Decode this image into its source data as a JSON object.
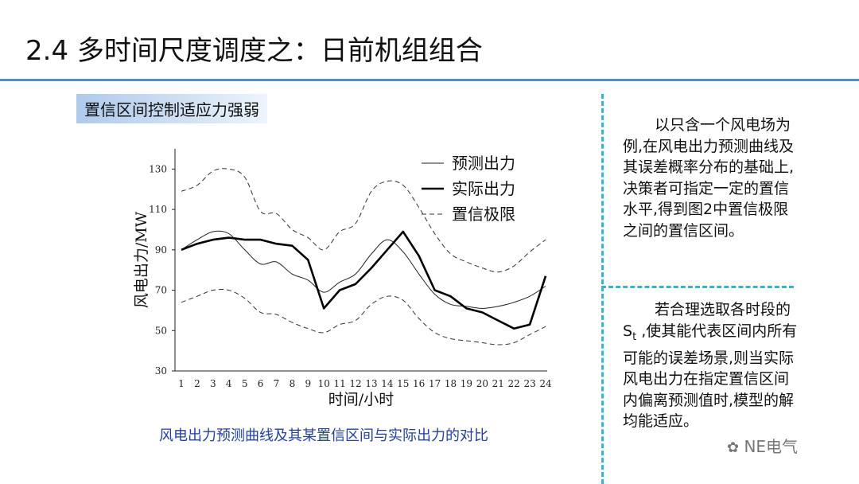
{
  "slide": {
    "title": "2.4 多时间尺度调度之：日前机组组合",
    "subtitle": "置信区间控制适应力强弱",
    "caption": "风电出力预测曲线及其某置信区间与实际出力的对比",
    "paragraph1": "以只含一个风电场为例,在风电出力预测曲线及其误差概率分布的基础上,决策者可指定一定的置信水平,得到图2中置信极限之间的置信区间。",
    "paragraph2_before": "若合理选取各时段的S",
    "paragraph2_sub": "t",
    "paragraph2_after": " ,使其能代表区间内所有可能的误差场景,则当实际风电出力在指定置信区间内偏离预测值时,模型的解均能适应。",
    "brand": "NE电气"
  },
  "chart_data": {
    "type": "line",
    "xlabel": "时间/小时",
    "ylabel": "风电出力/MW",
    "x": [
      1,
      2,
      3,
      4,
      5,
      6,
      7,
      8,
      9,
      10,
      11,
      12,
      13,
      14,
      15,
      16,
      17,
      18,
      19,
      20,
      21,
      22,
      23,
      24
    ],
    "xlim": [
      1,
      24
    ],
    "ylim": [
      30,
      140
    ],
    "yticks": [
      30,
      50,
      70,
      90,
      110,
      130
    ],
    "series": [
      {
        "name": "预测出力",
        "style": "thin",
        "values": [
          90,
          95,
          99,
          98,
          90,
          83,
          84,
          78,
          75,
          69,
          74,
          78,
          88,
          95,
          89,
          78,
          68,
          63,
          62,
          61,
          62,
          64,
          67,
          72
        ]
      },
      {
        "name": "实际出力",
        "style": "bold",
        "values": [
          90,
          93,
          95,
          96,
          95,
          95,
          93,
          92,
          85,
          61,
          70,
          73,
          81,
          90,
          99,
          87,
          70,
          67,
          61,
          59,
          55,
          51,
          53,
          77
        ]
      },
      {
        "name": "置信极限",
        "style": "dashed",
        "values": [
          119,
          122,
          129,
          130,
          126,
          109,
          108,
          100,
          96,
          90,
          99,
          103,
          119,
          124,
          122,
          111,
          98,
          88,
          84,
          81,
          79,
          82,
          89,
          95
        ]
      },
      {
        "name": "置信极限",
        "style": "dashed",
        "legend": false,
        "values": [
          64,
          67,
          70,
          70,
          66,
          59,
          58,
          54,
          51,
          49,
          53,
          55,
          63,
          67,
          65,
          56,
          49,
          46,
          45,
          44,
          43,
          44,
          48,
          52
        ]
      }
    ]
  }
}
